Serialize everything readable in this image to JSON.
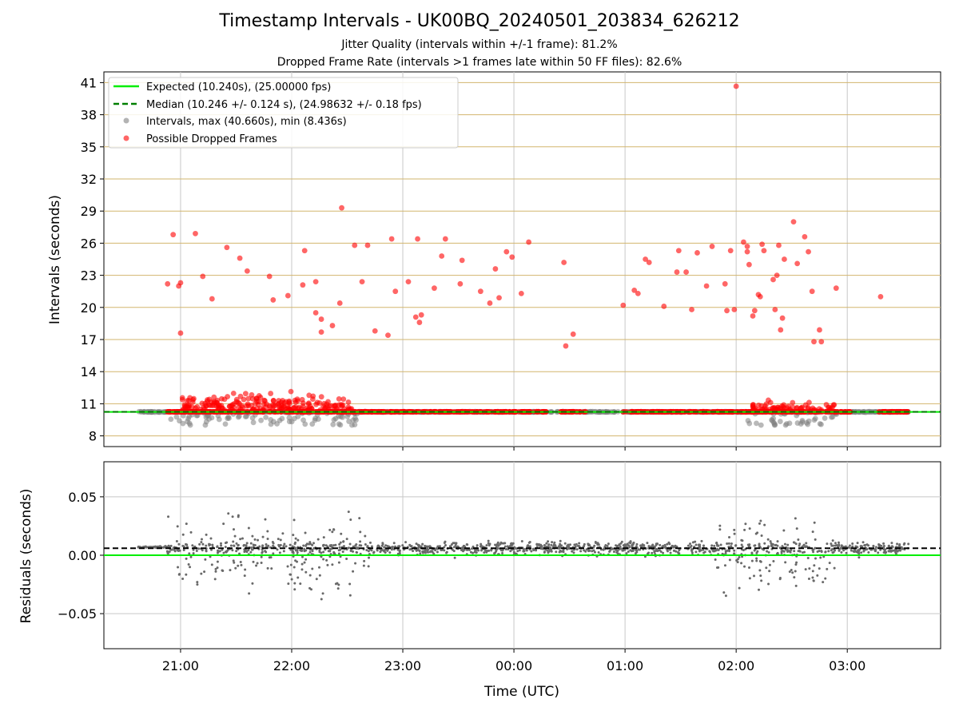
{
  "title": "Timestamp Intervals - UK00BQ_20240501_203834_626212",
  "subtitle_jitter": "Jitter Quality (intervals within +/-1 frame): 81.2%",
  "subtitle_dropped": "Dropped Frame Rate (intervals >1 frames late within 50 FF files): 82.6%",
  "colors": {
    "expected": "#00ee00",
    "median": "#007f00",
    "intervals": "#808080",
    "dropped": "#ff0000",
    "grid_top": "#d2b56e",
    "grid_x": "#c8c8c8",
    "residuals": "#696969"
  },
  "chart_data": [
    {
      "type": "scatter",
      "panel": "intervals",
      "ylabel": "Intervals (seconds)",
      "xlabel": "",
      "ylim": [
        7.0,
        42.0
      ],
      "yticks": [
        8,
        11,
        14,
        17,
        20,
        23,
        26,
        29,
        32,
        35,
        38,
        41
      ],
      "ytick_labels": [
        "8",
        "11",
        "14",
        "17",
        "20",
        "23",
        "26",
        "29",
        "32",
        "35",
        "38",
        "41"
      ],
      "xlim_hours_utc_since_20h": [
        0.31,
        7.84
      ],
      "xticks": [
        "21:00",
        "22:00",
        "23:00",
        "00:00",
        "01:00",
        "02:00",
        "03:00"
      ],
      "grid": "horizontal+vertical",
      "legend_position": "top-left",
      "legend": [
        "Expected (10.240s), (25.00000 fps)",
        "Median (10.246 +/- 0.124 s), (24.98632 +/- 0.18 fps)",
        "Intervals, max (40.660s), min (8.436s)",
        "Possible Dropped Frames"
      ],
      "expected": 10.24,
      "median": 10.246,
      "intervals_max": 40.66,
      "intervals_min": 8.436,
      "dropped_frames": [
        [
          "20:53",
          22.2
        ],
        [
          "20:56",
          26.8
        ],
        [
          "20:59",
          22.0
        ],
        [
          "21:00",
          22.3
        ],
        [
          "21:00",
          17.6
        ],
        [
          "21:08",
          26.9
        ],
        [
          "21:12",
          22.9
        ],
        [
          "21:17",
          20.8
        ],
        [
          "21:25",
          25.6
        ],
        [
          "21:32",
          24.6
        ],
        [
          "21:36",
          23.4
        ],
        [
          "21:48",
          22.9
        ],
        [
          "21:50",
          20.7
        ],
        [
          "21:58",
          21.1
        ],
        [
          "22:07",
          25.3
        ],
        [
          "22:06",
          22.1
        ],
        [
          "22:13",
          22.4
        ],
        [
          "22:13",
          19.5
        ],
        [
          "22:16",
          18.9
        ],
        [
          "22:16",
          17.7
        ],
        [
          "22:22",
          18.3
        ],
        [
          "22:26",
          20.4
        ],
        [
          "22:27",
          29.3
        ],
        [
          "22:34",
          25.8
        ],
        [
          "22:41",
          25.8
        ],
        [
          "22:38",
          22.4
        ],
        [
          "22:45",
          17.8
        ],
        [
          "22:52",
          17.4
        ],
        [
          "22:54",
          26.4
        ],
        [
          "22:56",
          21.5
        ],
        [
          "23:03",
          22.4
        ],
        [
          "23:07",
          19.1
        ],
        [
          "23:09",
          18.6
        ],
        [
          "23:10",
          19.3
        ],
        [
          "23:08",
          26.4
        ],
        [
          "23:17",
          21.8
        ],
        [
          "23:21",
          24.8
        ],
        [
          "23:23",
          26.4
        ],
        [
          "23:31",
          22.2
        ],
        [
          "23:32",
          24.4
        ],
        [
          "23:42",
          21.5
        ],
        [
          "23:47",
          20.4
        ],
        [
          "23:50",
          23.6
        ],
        [
          "23:52",
          20.9
        ],
        [
          "23:56",
          25.2
        ],
        [
          "23:59",
          24.7
        ],
        [
          "00:04",
          21.3
        ],
        [
          "00:08",
          26.1
        ],
        [
          "00:27",
          24.2
        ],
        [
          "00:28",
          16.4
        ],
        [
          "00:32",
          17.5
        ],
        [
          "00:59",
          20.2
        ],
        [
          "01:05",
          21.6
        ],
        [
          "01:07",
          21.3
        ],
        [
          "01:11",
          24.5
        ],
        [
          "01:13",
          24.2
        ],
        [
          "01:21",
          20.1
        ],
        [
          "01:28",
          23.3
        ],
        [
          "01:29",
          25.3
        ],
        [
          "01:33",
          23.3
        ],
        [
          "01:36",
          19.8
        ],
        [
          "01:39",
          25.1
        ],
        [
          "01:44",
          22.0
        ],
        [
          "01:47",
          25.7
        ],
        [
          "01:54",
          22.2
        ],
        [
          "01:55",
          19.7
        ],
        [
          "01:57",
          25.3
        ],
        [
          "01:59",
          19.8
        ],
        [
          "02:00",
          40.66
        ],
        [
          "02:04",
          26.1
        ],
        [
          "02:06",
          25.7
        ],
        [
          "02:06",
          25.2
        ],
        [
          "02:07",
          24.0
        ],
        [
          "02:09",
          19.2
        ],
        [
          "02:10",
          19.7
        ],
        [
          "02:12",
          21.2
        ],
        [
          "02:13",
          21.0
        ],
        [
          "02:14",
          25.9
        ],
        [
          "02:15",
          25.3
        ],
        [
          "02:20",
          22.6
        ],
        [
          "02:21",
          19.8
        ],
        [
          "02:22",
          23.0
        ],
        [
          "02:23",
          25.8
        ],
        [
          "02:24",
          17.9
        ],
        [
          "02:25",
          19.0
        ],
        [
          "02:26",
          24.5
        ],
        [
          "02:31",
          28.0
        ],
        [
          "02:33",
          24.1
        ],
        [
          "02:37",
          26.6
        ],
        [
          "02:39",
          25.2
        ],
        [
          "02:41",
          21.5
        ],
        [
          "02:42",
          16.8
        ],
        [
          "02:45",
          17.9
        ],
        [
          "02:46",
          16.8
        ],
        [
          "02:54",
          21.8
        ],
        [
          "03:18",
          21.0
        ]
      ]
    },
    {
      "type": "scatter",
      "panel": "residuals",
      "ylabel": "Residuals (seconds)",
      "xlabel": "Time (UTC)",
      "ylim": [
        -0.08,
        0.08
      ],
      "yticks": [
        -0.05,
        0.0,
        0.05
      ],
      "ytick_labels": [
        "−0.05",
        "0.00",
        "0.05"
      ],
      "xticks": [
        "21:00",
        "22:00",
        "23:00",
        "00:00",
        "01:00",
        "02:00",
        "03:00"
      ],
      "grid": "horizontal+vertical",
      "expected_residual": 0.0,
      "median_residual": 0.006
    }
  ]
}
